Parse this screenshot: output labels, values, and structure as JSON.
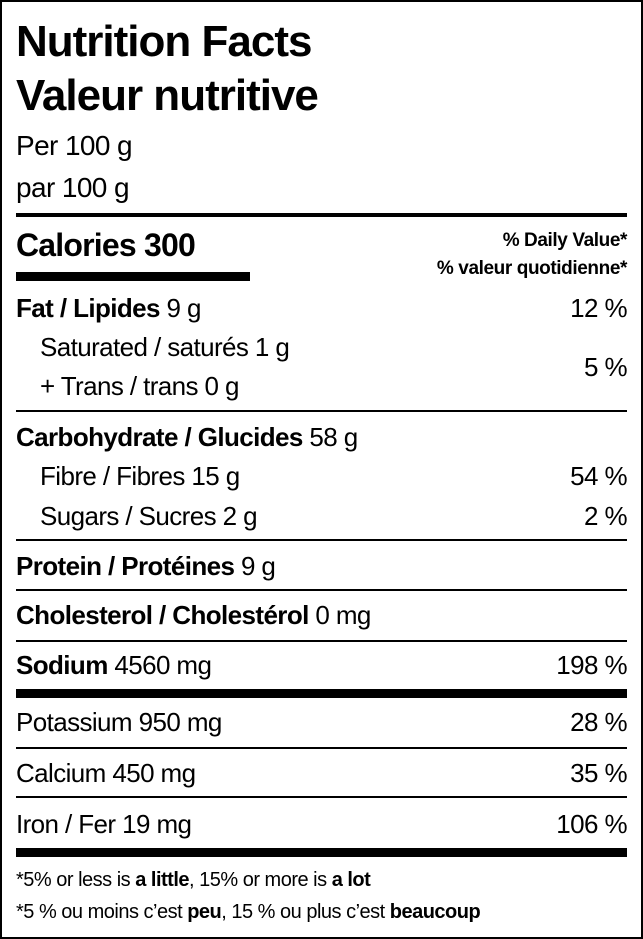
{
  "header": {
    "title_en": "Nutrition Facts",
    "title_fr": "Valeur nutritive",
    "serving_en": "Per 100 g",
    "serving_fr": "par 100 g"
  },
  "calories": {
    "label": "Calories",
    "value": "300"
  },
  "dv_header": {
    "en": "% Daily Value*",
    "fr": "% valeur quotidienne*"
  },
  "nutrients": {
    "fat": {
      "label": "Fat / Lipides",
      "amount": "9 g",
      "dv": "12 %"
    },
    "saturated": {
      "label": "Saturated / saturés",
      "amount": "1 g"
    },
    "trans": {
      "label": "+ Trans / trans",
      "amount": "0 g"
    },
    "sat_trans_dv": "5 %",
    "carbohydrate": {
      "label": "Carbohydrate / Glucides",
      "amount": "58 g"
    },
    "fibre": {
      "label": "Fibre / Fibres",
      "amount": "15 g",
      "dv": "54 %"
    },
    "sugars": {
      "label": "Sugars / Sucres",
      "amount": "2 g",
      "dv": "2 %"
    },
    "protein": {
      "label": "Protein / Protéines",
      "amount": "9 g"
    },
    "cholesterol": {
      "label": "Cholesterol / Cholestérol",
      "amount": "0 mg"
    },
    "sodium": {
      "label": "Sodium",
      "amount": "4560 mg",
      "dv": "198 %"
    },
    "potassium": {
      "label": "Potassium",
      "amount": "950 mg",
      "dv": "28 %"
    },
    "calcium": {
      "label": "Calcium",
      "amount": "450 mg",
      "dv": "35 %"
    },
    "iron": {
      "label": "Iron / Fer",
      "amount": "19 mg",
      "dv": "106 %"
    }
  },
  "footnote": {
    "en_1": "*5% or less is ",
    "en_2": "a little",
    "en_3": ", 15% or more is ",
    "en_4": "a lot",
    "fr_1": "*5 % ou moins c’est ",
    "fr_2": "peu",
    "fr_3": ", 15 % ou plus c’est ",
    "fr_4": "beaucoup"
  }
}
